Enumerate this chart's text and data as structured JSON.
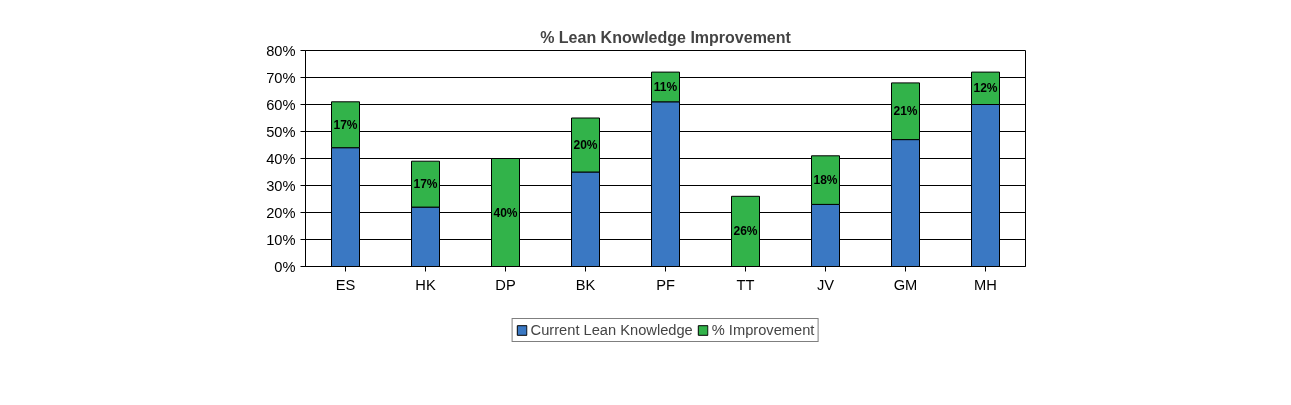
{
  "chart_data": {
    "type": "bar",
    "title": "% Lean Knowledge Improvement",
    "stacked": true,
    "categories": [
      "ES",
      "HK",
      "DP",
      "BK",
      "PF",
      "TT",
      "JV",
      "GM",
      "MH"
    ],
    "series": [
      {
        "name": "Current Lean Knowledge",
        "color": "#3a78c3",
        "values": [
          44,
          22,
          0,
          35,
          61,
          0,
          23,
          47,
          60
        ]
      },
      {
        "name": "% Improvement",
        "color": "#32b34a",
        "values": [
          17,
          17,
          40,
          20,
          11,
          26,
          18,
          21,
          12
        ],
        "value_labels": [
          "17%",
          "17%",
          "40%",
          "20%",
          "11%",
          "26%",
          "18%",
          "21%",
          "12%"
        ]
      }
    ],
    "ylim": [
      0,
      80
    ],
    "yticks": [
      {
        "value": 0,
        "label": "0%"
      },
      {
        "value": 10,
        "label": "10%"
      },
      {
        "value": 20,
        "label": "20%"
      },
      {
        "value": 30,
        "label": "30%"
      },
      {
        "value": 40,
        "label": "40%"
      },
      {
        "value": 50,
        "label": "50%"
      },
      {
        "value": 60,
        "label": "60%"
      },
      {
        "value": 70,
        "label": "70%"
      },
      {
        "value": 80,
        "label": "80%"
      }
    ],
    "grid": "y",
    "legend": "bottom"
  }
}
